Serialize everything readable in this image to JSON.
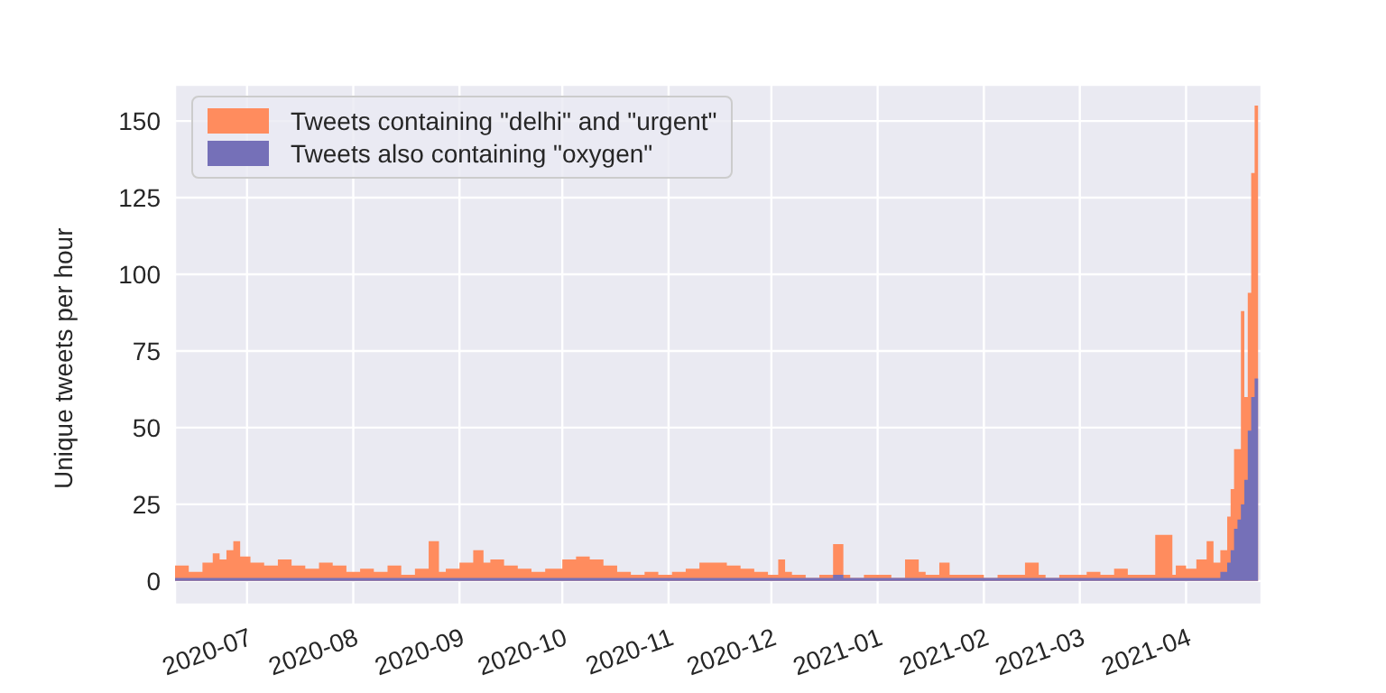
{
  "chart_data": {
    "type": "area",
    "ylabel": "Unique tweets per hour",
    "x": [
      "2020-06-10",
      "2020-06-14",
      "2020-06-18",
      "2020-06-21",
      "2020-06-23",
      "2020-06-25",
      "2020-06-27",
      "2020-06-29",
      "2020-07-02",
      "2020-07-06",
      "2020-07-10",
      "2020-07-14",
      "2020-07-18",
      "2020-07-22",
      "2020-07-26",
      "2020-07-30",
      "2020-08-03",
      "2020-08-07",
      "2020-08-11",
      "2020-08-15",
      "2020-08-19",
      "2020-08-23",
      "2020-08-26",
      "2020-08-28",
      "2020-09-01",
      "2020-09-05",
      "2020-09-08",
      "2020-09-10",
      "2020-09-14",
      "2020-09-18",
      "2020-09-22",
      "2020-09-26",
      "2020-10-01",
      "2020-10-05",
      "2020-10-09",
      "2020-10-13",
      "2020-10-17",
      "2020-10-21",
      "2020-10-25",
      "2020-10-29",
      "2020-11-02",
      "2020-11-06",
      "2020-11-10",
      "2020-11-14",
      "2020-11-18",
      "2020-11-22",
      "2020-11-26",
      "2020-11-30",
      "2020-12-03",
      "2020-12-05",
      "2020-12-07",
      "2020-12-11",
      "2020-12-15",
      "2020-12-19",
      "2020-12-22",
      "2020-12-24",
      "2020-12-28",
      "2021-01-01",
      "2021-01-05",
      "2021-01-09",
      "2021-01-13",
      "2021-01-15",
      "2021-01-19",
      "2021-01-22",
      "2021-01-24",
      "2021-01-28",
      "2021-02-01",
      "2021-02-05",
      "2021-02-09",
      "2021-02-13",
      "2021-02-17",
      "2021-02-19",
      "2021-02-23",
      "2021-02-27",
      "2021-03-03",
      "2021-03-07",
      "2021-03-11",
      "2021-03-15",
      "2021-03-19",
      "2021-03-23",
      "2021-03-28",
      "2021-03-29",
      "2021-04-01",
      "2021-04-04",
      "2021-04-07",
      "2021-04-09",
      "2021-04-11",
      "2021-04-13",
      "2021-04-14",
      "2021-04-15",
      "2021-04-16",
      "2021-04-17",
      "2021-04-18",
      "2021-04-19",
      "2021-04-20",
      "2021-04-21",
      "2021-04-22"
    ],
    "series": [
      {
        "name": "Tweets containing \"delhi\" and \"urgent\"",
        "color": "#ff8c5e",
        "values": [
          4,
          5,
          3,
          6,
          9,
          7,
          10,
          13,
          8,
          6,
          5,
          7,
          5,
          4,
          6,
          5,
          3,
          4,
          3,
          5,
          2,
          4,
          13,
          3,
          4,
          6,
          10,
          6,
          7,
          5,
          4,
          3,
          4,
          7,
          8,
          7,
          5,
          3,
          2,
          3,
          2,
          3,
          4,
          6,
          6,
          5,
          4,
          3,
          2,
          7,
          3,
          2,
          1,
          2,
          12,
          2,
          1,
          2,
          2,
          1,
          7,
          3,
          2,
          6,
          2,
          2,
          2,
          1,
          2,
          2,
          6,
          2,
          1,
          2,
          2,
          3,
          2,
          4,
          2,
          2,
          15,
          2,
          5,
          4,
          7,
          13,
          6,
          10,
          21,
          30,
          43,
          43,
          88,
          60,
          94,
          133,
          155
        ]
      },
      {
        "name": "Tweets also containing \"oxygen\"",
        "color": "#7570b8",
        "values": [
          1,
          1,
          1,
          1,
          1,
          1,
          1,
          1,
          1,
          1,
          1,
          1,
          1,
          1,
          1,
          1,
          1,
          1,
          1,
          1,
          1,
          1,
          1,
          1,
          1,
          1,
          1,
          1,
          1,
          1,
          1,
          1,
          1,
          1,
          1,
          1,
          1,
          1,
          1,
          1,
          1,
          1,
          1,
          1,
          1,
          1,
          1,
          1,
          1,
          1,
          1,
          1,
          1,
          1,
          2,
          1,
          1,
          1,
          1,
          1,
          1,
          1,
          1,
          1,
          1,
          1,
          1,
          1,
          1,
          1,
          1,
          1,
          1,
          1,
          1,
          1,
          1,
          1,
          1,
          1,
          1,
          1,
          1,
          1,
          1,
          1,
          1,
          3,
          6,
          10,
          17,
          20,
          25,
          33,
          49,
          60,
          66
        ]
      }
    ],
    "xlim": [
      "2020-06-10",
      "2021-04-23"
    ],
    "xticks": [
      {
        "value": "2020-07-01",
        "label": "2020-07"
      },
      {
        "value": "2020-08-01",
        "label": "2020-08"
      },
      {
        "value": "2020-09-01",
        "label": "2020-09"
      },
      {
        "value": "2020-10-01",
        "label": "2020-10"
      },
      {
        "value": "2020-11-01",
        "label": "2020-11"
      },
      {
        "value": "2020-12-01",
        "label": "2020-12"
      },
      {
        "value": "2021-01-01",
        "label": "2021-01"
      },
      {
        "value": "2021-02-01",
        "label": "2021-02"
      },
      {
        "value": "2021-03-01",
        "label": "2021-03"
      },
      {
        "value": "2021-04-01",
        "label": "2021-04"
      }
    ],
    "ylim": [
      -7.7,
      161.8
    ],
    "yticks": [
      0,
      25,
      50,
      75,
      100,
      125,
      150
    ],
    "grid": true,
    "legend": "top left"
  }
}
